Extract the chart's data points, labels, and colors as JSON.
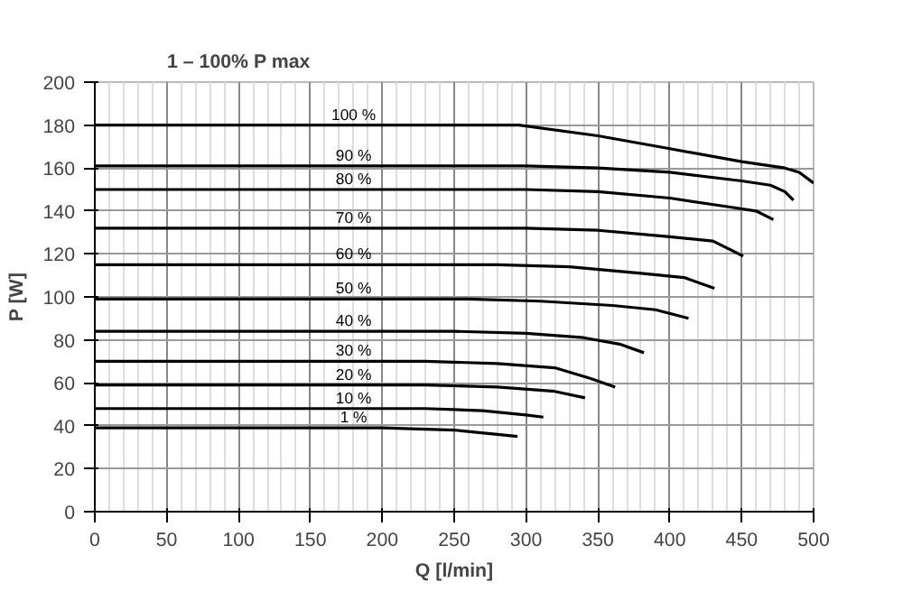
{
  "chart_data": {
    "type": "line",
    "title": "1 – 100% P max",
    "xlabel": "Q [l/min]",
    "ylabel": "P [W]",
    "xlim": [
      0,
      500
    ],
    "ylim": [
      0,
      200
    ],
    "xticks": [
      0,
      50,
      100,
      150,
      200,
      250,
      300,
      350,
      400,
      450,
      500
    ],
    "yticks": [
      0,
      20,
      40,
      60,
      80,
      100,
      120,
      140,
      160,
      180,
      200
    ],
    "grid": true,
    "marker": "none",
    "line_style": "solid",
    "series": [
      {
        "name": "100 %",
        "color": "#000000",
        "x": [
          0,
          295,
          350,
          400,
          450,
          480,
          490,
          500
        ],
        "values": [
          180,
          180,
          175,
          169,
          163,
          160,
          158,
          153
        ]
      },
      {
        "name": "90 %",
        "color": "#000000",
        "x": [
          0,
          300,
          350,
          400,
          450,
          470,
          480,
          486
        ],
        "values": [
          161,
          161,
          160,
          158,
          154,
          152,
          149,
          145
        ]
      },
      {
        "name": "80 %",
        "color": "#000000",
        "x": [
          0,
          300,
          350,
          400,
          440,
          460,
          472
        ],
        "values": [
          150,
          150,
          149,
          146,
          142,
          140,
          136
        ]
      },
      {
        "name": "70 %",
        "color": "#000000",
        "x": [
          0,
          300,
          350,
          400,
          430,
          451
        ],
        "values": [
          132,
          132,
          131,
          128,
          126,
          119
        ]
      },
      {
        "name": "60 %",
        "color": "#000000",
        "x": [
          0,
          280,
          330,
          380,
          410,
          431
        ],
        "values": [
          115,
          115,
          114,
          111,
          109,
          104
        ]
      },
      {
        "name": "50 %",
        "color": "#000000",
        "x": [
          0,
          260,
          310,
          360,
          390,
          413
        ],
        "values": [
          99,
          99,
          98,
          96,
          94,
          90
        ]
      },
      {
        "name": "40 %",
        "color": "#000000",
        "x": [
          0,
          250,
          300,
          340,
          365,
          382
        ],
        "values": [
          84,
          84,
          83,
          81,
          78,
          74
        ]
      },
      {
        "name": "30 %",
        "color": "#000000",
        "x": [
          0,
          230,
          280,
          320,
          345,
          362
        ],
        "values": [
          70,
          70,
          69,
          67,
          62,
          58
        ]
      },
      {
        "name": "20 %",
        "color": "#000000",
        "x": [
          0,
          230,
          280,
          320,
          341
        ],
        "values": [
          59,
          59,
          58,
          56,
          53
        ]
      },
      {
        "name": "10 %",
        "color": "#000000",
        "x": [
          0,
          230,
          270,
          300,
          312
        ],
        "values": [
          48,
          48,
          47,
          45,
          44
        ]
      },
      {
        "name": "1 %",
        "color": "#000000",
        "x": [
          0,
          200,
          250,
          280,
          294
        ],
        "values": [
          39,
          39,
          38,
          36,
          35
        ]
      }
    ]
  }
}
